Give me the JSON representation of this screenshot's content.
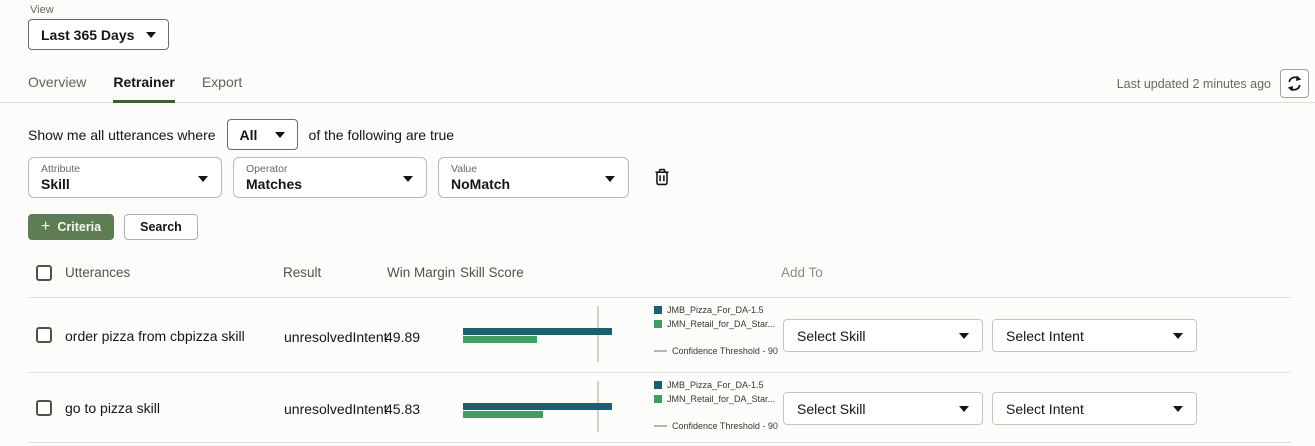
{
  "view": {
    "label": "View",
    "value": "Last 365 Days"
  },
  "tabs": [
    {
      "label": "Overview",
      "active": false
    },
    {
      "label": "Retrainer",
      "active": true
    },
    {
      "label": "Export",
      "active": false
    }
  ],
  "last_updated": "Last updated 2 minutes ago",
  "filter": {
    "prefix": "Show me all utterances where",
    "match_value": "All",
    "suffix": "of the following are true"
  },
  "criteria": [
    {
      "label": "Attribute",
      "value": "Skill"
    },
    {
      "label": "Operator",
      "value": "Matches"
    },
    {
      "label": "Value",
      "value": "NoMatch"
    }
  ],
  "buttons": {
    "criteria": "Criteria",
    "plus": "+",
    "search": "Search"
  },
  "table": {
    "headers": [
      "Utterances",
      "Result",
      "Win Margin",
      "Skill Score",
      "Add To"
    ],
    "rows": [
      {
        "utterance": "order pizza from cbpizza skill",
        "result": "unresolvedIntent",
        "win_margin": "49.89",
        "skill_select": "Select Skill",
        "intent_select": "Select Intent"
      },
      {
        "utterance": "go to pizza skill",
        "result": "unresolvedIntent",
        "win_margin": "45.83",
        "skill_select": "Select Skill",
        "intent_select": "Select Intent"
      }
    ]
  },
  "chart_data": [
    {
      "type": "bar",
      "orientation": "horizontal",
      "row_label": "order pizza from cbpizza skill",
      "series": [
        {
          "name": "JMB_Pizza_For_DA-1.5",
          "value": 99.5,
          "color": "#19616f"
        },
        {
          "name": "JMN_Retail_for_DA_Star...",
          "value": 49.5,
          "color": "#3f9e63"
        }
      ],
      "threshold": {
        "label": "Confidence Threshold - 90",
        "value": 90
      },
      "xlim": [
        0,
        110
      ],
      "legend_position": "right",
      "grid": false
    },
    {
      "type": "bar",
      "orientation": "horizontal",
      "row_label": "go to pizza skill",
      "series": [
        {
          "name": "JMB_Pizza_For_DA-1.5",
          "value": 99.5,
          "color": "#19616f"
        },
        {
          "name": "JMN_Retail_for_DA_Star...",
          "value": 53.5,
          "color": "#3f9e63"
        }
      ],
      "threshold": {
        "label": "Confidence Threshold - 90",
        "value": 90
      },
      "xlim": [
        0,
        110
      ],
      "legend_position": "right",
      "grid": false
    }
  ],
  "colors": {
    "accent_green": "#5f7d54",
    "tab_underline": "#39602e",
    "bar_teal": "#19616f",
    "bar_green": "#3f9e63",
    "threshold_gray": "#d2cfc9"
  }
}
